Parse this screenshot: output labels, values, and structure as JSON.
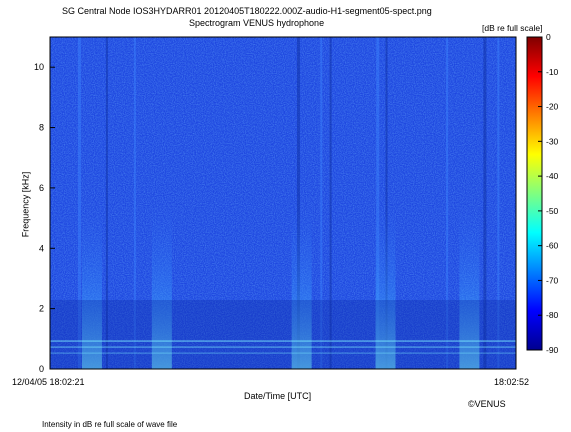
{
  "chart_data": {
    "type": "heatmap",
    "title": "SG Central Node IOS3HYDARR01 20120405T180222.000Z-audio-H1-segment05-spect.png",
    "subtitle": "Spectrogram VENUS hydrophone",
    "xlabel": "Date/Time [UTC]",
    "ylabel": "Frequency [kHz]",
    "x_start_label": "12/04/05 18:02:21",
    "x_end_label": "18:02:52",
    "x_range": [
      "18:02:21",
      "18:02:52"
    ],
    "ylim": [
      0,
      11
    ],
    "y_ticks": [
      0,
      2,
      4,
      6,
      8,
      10
    ],
    "colorbar": {
      "label": "[dB re full scale]",
      "range": [
        -90,
        0
      ],
      "ticks": [
        0,
        -10,
        -20,
        -30,
        -40,
        -50,
        -60,
        -70,
        -80,
        -90
      ],
      "colormap": "jet"
    },
    "background_level_db": -55,
    "grid": false,
    "legend": "none"
  },
  "footer": {
    "note": "Intensity in dB re full scale of wave file",
    "credit": "©VENUS"
  },
  "colors": {
    "background": "#ffffff",
    "spectrogram_base": "#1f48e0",
    "noise_band": "#7ff0ff"
  }
}
